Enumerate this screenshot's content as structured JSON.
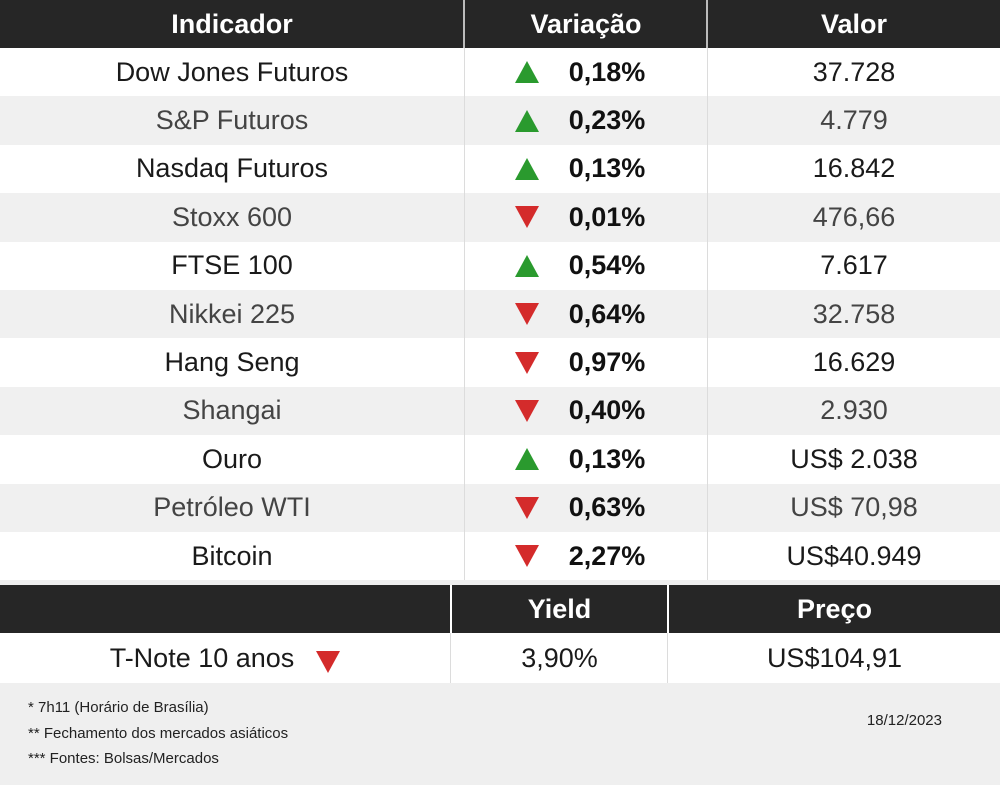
{
  "header": {
    "col1": "Indicador",
    "col2": "Variação",
    "col3": "Valor"
  },
  "colors": {
    "up": "#2a9a2e",
    "down": "#d42b2b",
    "header_bg": "#262626"
  },
  "chart_data": {
    "type": "table",
    "columns": [
      "Indicador",
      "Variação",
      "Valor"
    ],
    "rows": [
      {
        "name": "Dow Jones Futuros",
        "direction": "up",
        "change": "0,18%",
        "value": "37.728"
      },
      {
        "name": "S&P Futuros",
        "direction": "up",
        "change": "0,23%",
        "value": "4.779"
      },
      {
        "name": "Nasdaq Futuros",
        "direction": "up",
        "change": "0,13%",
        "value": "16.842"
      },
      {
        "name": "Stoxx 600",
        "direction": "down",
        "change": "0,01%",
        "value": "476,66"
      },
      {
        "name": "FTSE 100",
        "direction": "up",
        "change": "0,54%",
        "value": "7.617"
      },
      {
        "name": "Nikkei 225",
        "direction": "down",
        "change": "0,64%",
        "value": "32.758"
      },
      {
        "name": "Hang Seng",
        "direction": "down",
        "change": "0,97%",
        "value": "16.629"
      },
      {
        "name": "Shangai",
        "direction": "down",
        "change": "0,40%",
        "value": "2.930"
      },
      {
        "name": "Ouro",
        "direction": "up",
        "change": "0,13%",
        "value": "US$ 2.038"
      },
      {
        "name": "Petróleo WTI",
        "direction": "down",
        "change": "0,63%",
        "value": "US$ 70,98"
      },
      {
        "name": "Bitcoin",
        "direction": "down",
        "change": "2,27%",
        "value": "US$40.949"
      }
    ]
  },
  "tnote": {
    "header_yield": "Yield",
    "header_price": "Preço",
    "name": "T-Note 10 anos",
    "direction": "down",
    "yield": "3,90%",
    "price": "US$104,91"
  },
  "footer": {
    "note1": "* 7h11 (Horário de Brasília)",
    "note2": "** Fechamento dos mercados asiáticos",
    "note3": "*** Fontes: Bolsas/Mercados",
    "date": "18/12/2023"
  }
}
